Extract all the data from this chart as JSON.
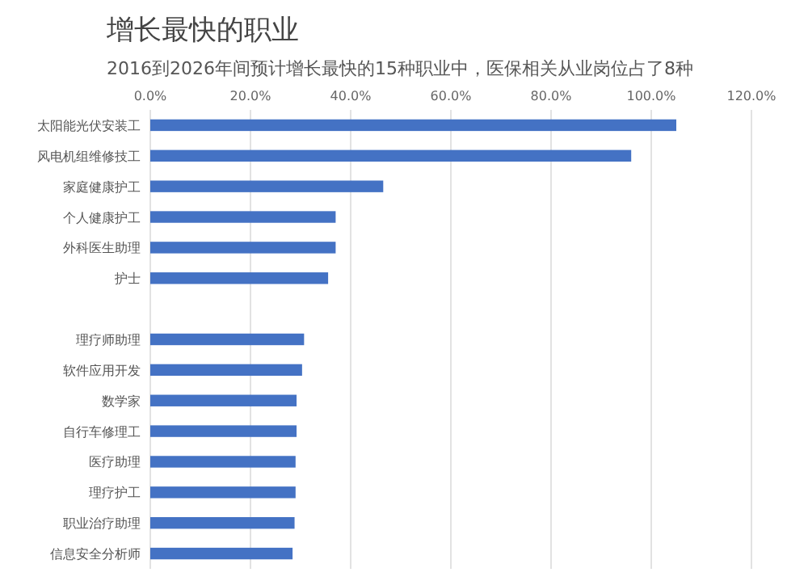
{
  "chart_data": {
    "type": "bar",
    "orientation": "horizontal",
    "title": "增长最快的职业",
    "subtitle": "2016到2026年间预计增长最快的15种职业中，医保相关从业岗位占了8种",
    "categories": [
      "太阳能光伏安装工",
      "风电机组维修技工",
      "家庭健康护工",
      "个人健康护工",
      "外科医生助理",
      "护士",
      null,
      "理疗师助理",
      "软件应用开发",
      "数学家",
      "自行车修理工",
      "医疗助理",
      "理疗护工",
      "职业治疗助理",
      "信息安全分析师"
    ],
    "values": [
      105,
      96,
      46.5,
      37,
      37,
      35.5,
      null,
      30.7,
      30.3,
      29.2,
      29.2,
      29,
      29,
      28.8,
      28.4
    ],
    "color": "#4472c4",
    "xlim": [
      0,
      120
    ],
    "xticks": [
      {
        "value": 0,
        "label": "0.0%"
      },
      {
        "value": 20,
        "label": "20.0%"
      },
      {
        "value": 40,
        "label": "40.0%"
      },
      {
        "value": 60,
        "label": "60.0%"
      },
      {
        "value": 80,
        "label": "80.0%"
      },
      {
        "value": 100,
        "label": "100.0%"
      },
      {
        "value": 120,
        "label": "120.0%"
      }
    ],
    "grid": "x"
  }
}
